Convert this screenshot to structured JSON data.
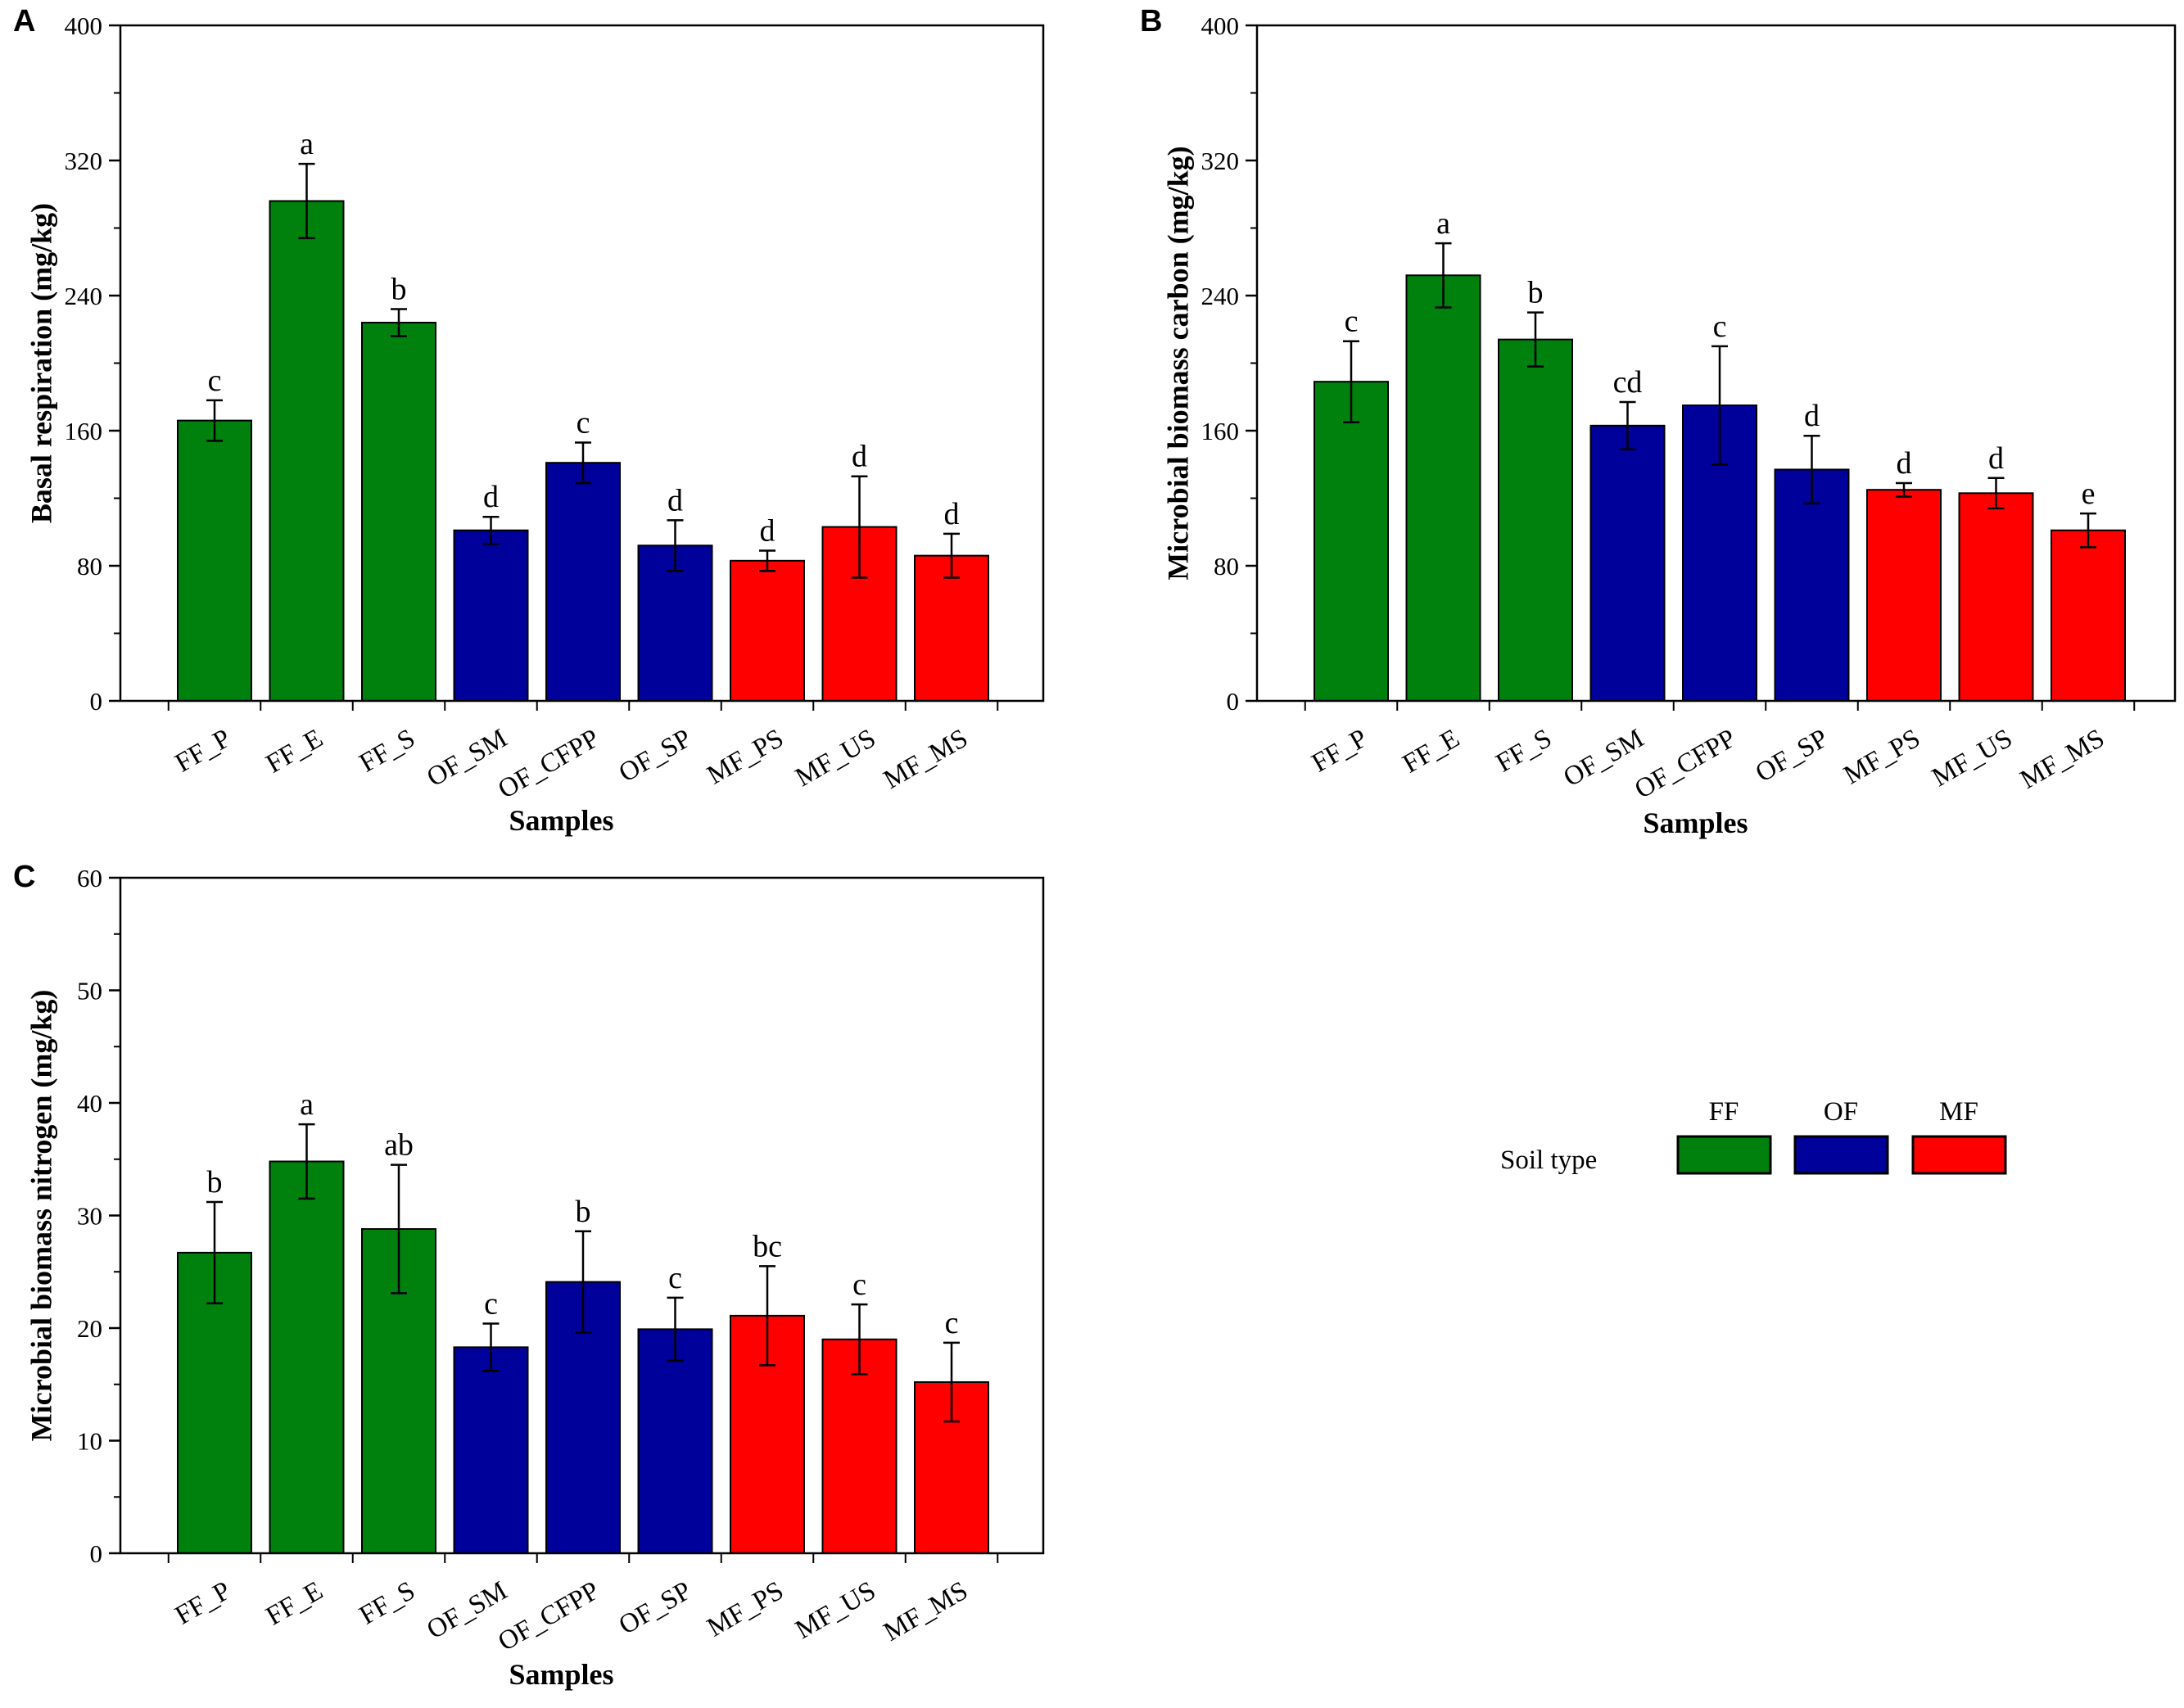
{
  "colors": {
    "FF": "#00800c",
    "OF": "#00009a",
    "MF": "#ff0000",
    "axis": "#000000"
  },
  "categories": [
    "FF_P",
    "FF_E",
    "FF_S",
    "OF_SM",
    "OF_CFPP",
    "OF_SP",
    "MF_PS",
    "MF_US",
    "MF_MS"
  ],
  "groups": [
    "FF",
    "FF",
    "FF",
    "OF",
    "OF",
    "OF",
    "MF",
    "MF",
    "MF"
  ],
  "legend": {
    "title": "Soil type",
    "entries": [
      {
        "label": "FF",
        "color_key": "FF"
      },
      {
        "label": "OF",
        "color_key": "OF"
      },
      {
        "label": "MF",
        "color_key": "MF"
      }
    ]
  },
  "chart_data": [
    {
      "type": "bar",
      "panel_label": "A",
      "title": "",
      "xlabel": "Samples",
      "ylabel": "Basal respiration (mg/kg)",
      "ylim": [
        0,
        400
      ],
      "yticks": [
        0,
        80,
        160,
        240,
        320,
        400
      ],
      "categories": [
        "FF_P",
        "FF_E",
        "FF_S",
        "OF_SM",
        "OF_CFPP",
        "OF_SP",
        "MF_PS",
        "MF_US",
        "MF_MS"
      ],
      "values": [
        166,
        296,
        224,
        101,
        141,
        92,
        83,
        103,
        86
      ],
      "errors": [
        12,
        22,
        8,
        8,
        12,
        15,
        6,
        30,
        13
      ],
      "significance": [
        "c",
        "a",
        "b",
        "d",
        "c",
        "d",
        "d",
        "d",
        "d"
      ]
    },
    {
      "type": "bar",
      "panel_label": "B",
      "title": "",
      "xlabel": "Samples",
      "ylabel": "Microbial biomass carbon (mg/kg)",
      "ylim": [
        0,
        400
      ],
      "yticks": [
        0,
        80,
        160,
        240,
        320,
        400
      ],
      "categories": [
        "FF_P",
        "FF_E",
        "FF_S",
        "OF_SM",
        "OF_CFPP",
        "OF_SP",
        "MF_PS",
        "MF_US",
        "MF_MS"
      ],
      "values": [
        189,
        252,
        214,
        163,
        175,
        137,
        125,
        123,
        101
      ],
      "errors": [
        24,
        19,
        16,
        14,
        35,
        20,
        4,
        9,
        10
      ],
      "significance": [
        "c",
        "a",
        "b",
        "cd",
        "c",
        "d",
        "d",
        "d",
        "e"
      ]
    },
    {
      "type": "bar",
      "panel_label": "C",
      "title": "",
      "xlabel": "Samples",
      "ylabel": "Microbial biomass nitrogen (mg/kg)",
      "ylim": [
        0,
        60
      ],
      "yticks": [
        0,
        10,
        20,
        30,
        40,
        50,
        60
      ],
      "categories": [
        "FF_P",
        "FF_E",
        "FF_S",
        "OF_SM",
        "OF_CFPP",
        "OF_SP",
        "MF_PS",
        "MF_US",
        "MF_MS"
      ],
      "values": [
        26.7,
        34.8,
        28.8,
        18.3,
        24.1,
        19.9,
        21.1,
        19.0,
        15.2
      ],
      "errors": [
        4.5,
        3.3,
        5.7,
        2.1,
        4.5,
        2.8,
        4.4,
        3.1,
        3.5
      ],
      "significance": [
        "b",
        "a",
        "ab",
        "c",
        "b",
        "c",
        "bc",
        "c",
        "c"
      ]
    }
  ]
}
